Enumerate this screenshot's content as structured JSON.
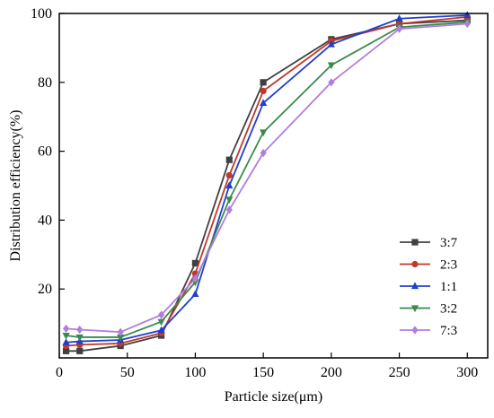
{
  "chart_data": {
    "type": "line",
    "title": "",
    "xlabel": "Particle size(μm)",
    "ylabel": "Distribution efficiency(%)",
    "xlim": [
      0,
      315
    ],
    "ylim": [
      0,
      100
    ],
    "x_ticks": [
      0,
      50,
      100,
      150,
      200,
      250,
      300
    ],
    "y_ticks": [
      20,
      40,
      60,
      80,
      100
    ],
    "grid": false,
    "legend_position": "bottom-right",
    "x": [
      5,
      15,
      45,
      75,
      100,
      125,
      150,
      200,
      250,
      300
    ],
    "series": [
      {
        "name": "3:7",
        "color": "#404040",
        "marker": "square",
        "values": [
          2.0,
          2.0,
          3.5,
          6.5,
          27.5,
          57.5,
          80.0,
          92.5,
          97.0,
          98.0
        ]
      },
      {
        "name": "2:3",
        "color": "#c0392b",
        "marker": "circle",
        "values": [
          3.5,
          3.8,
          4.2,
          7.2,
          24.5,
          53.0,
          77.5,
          92.0,
          97.0,
          99.0
        ]
      },
      {
        "name": "1:1",
        "color": "#1f3fcf",
        "marker": "triangle-up",
        "values": [
          4.5,
          4.8,
          5.2,
          8.0,
          18.5,
          50.0,
          74.0,
          91.0,
          98.5,
          99.5
        ]
      },
      {
        "name": "3:2",
        "color": "#3a8a4a",
        "marker": "triangle-down",
        "values": [
          6.5,
          6.0,
          6.0,
          10.5,
          22.0,
          46.0,
          65.5,
          85.0,
          96.0,
          97.5
        ]
      },
      {
        "name": "7:3",
        "color": "#b27de0",
        "marker": "diamond",
        "values": [
          8.5,
          8.2,
          7.5,
          12.5,
          23.0,
          43.0,
          59.5,
          80.0,
          95.5,
          97.0
        ]
      }
    ]
  }
}
